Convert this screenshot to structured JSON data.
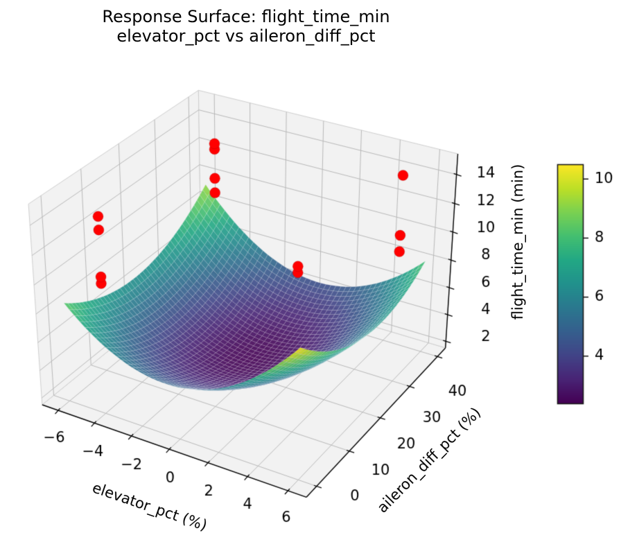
{
  "figure": {
    "title_line1": "Response Surface: flight_time_min",
    "title_line2": "elevator_pct vs aileron_diff_pct"
  },
  "chart_data": {
    "type": "surface3d",
    "title": "Response Surface: flight_time_min / elevator_pct vs aileron_diff_pct",
    "view": {
      "elev": 30,
      "azim": -60,
      "projection": "perspective"
    },
    "x_axis": {
      "label": "elevator_pct (%)",
      "ticks": [
        -6,
        -4,
        -2,
        0,
        2,
        4,
        6
      ],
      "data_range": [
        -6,
        6
      ],
      "box_range": [
        -6.9,
        6.9
      ]
    },
    "y_axis": {
      "label": "aileron_diff_pct (%)",
      "ticks": [
        0,
        10,
        20,
        30,
        40
      ],
      "data_range": [
        0,
        40
      ],
      "box_range": [
        -3,
        43
      ]
    },
    "z_axis": {
      "label": "flight_time_min (min)",
      "ticks": [
        2,
        4,
        6,
        8,
        10,
        12,
        14
      ],
      "box_range": [
        1.5,
        15.4
      ]
    },
    "surface": {
      "colormap": "viridis",
      "equation": "z = 2.4 + 0.12*(x+0.1)^2 + 0.006*(y-21.5)^2 - 0.00667*(x+0.1)*(y-21.5)",
      "base": 2.4,
      "coef_x2": 0.12,
      "x_center": -0.1,
      "coef_y2": 0.006,
      "y_center": 21.5,
      "coef_xy": -0.00667,
      "x_domain": [
        -6,
        6
      ],
      "y_domain": [
        0,
        40
      ],
      "mesh_nx": 44,
      "mesh_ny": 44,
      "z_min": 2.4,
      "z_max": 10.5
    },
    "colorbar": {
      "ticks": [
        4,
        6,
        8,
        10
      ],
      "vmin": 2.4,
      "vmax": 10.5
    },
    "scatter": {
      "color": "#ff0000",
      "marker_radius_px": 7.5,
      "points": [
        {
          "x": -5,
          "y": 5,
          "z": 13.8
        },
        {
          "x": -5,
          "y": 5,
          "z": 12.9
        },
        {
          "x": -5,
          "y": 5,
          "z": 9.7
        },
        {
          "x": -5,
          "y": 5,
          "z": 9.25
        },
        {
          "x": -5,
          "y": 37.5,
          "z": 13.1
        },
        {
          "x": -5,
          "y": 37.5,
          "z": 12.7
        },
        {
          "x": -5,
          "y": 37.5,
          "z": 10.6
        },
        {
          "x": -5,
          "y": 37.5,
          "z": 9.55
        },
        {
          "x": 5,
          "y": 37.5,
          "z": 14.25
        },
        {
          "x": 5,
          "y": 37.5,
          "z": 10.1
        },
        {
          "x": 5,
          "y": 37.5,
          "z": 8.95
        },
        {
          "x": 5,
          "y": 5,
          "z": 14.3
        },
        {
          "x": 5,
          "y": 5,
          "z": 13.9
        }
      ]
    },
    "colors": {
      "pane": "#f2f2f2",
      "pane_edge": "#cfcfcf",
      "grid": "#b9b9b9",
      "axis_line": "#000000",
      "tick_label": "#000000",
      "background": "#ffffff",
      "mesh_line": "rgba(255,255,255,0.35)"
    }
  }
}
